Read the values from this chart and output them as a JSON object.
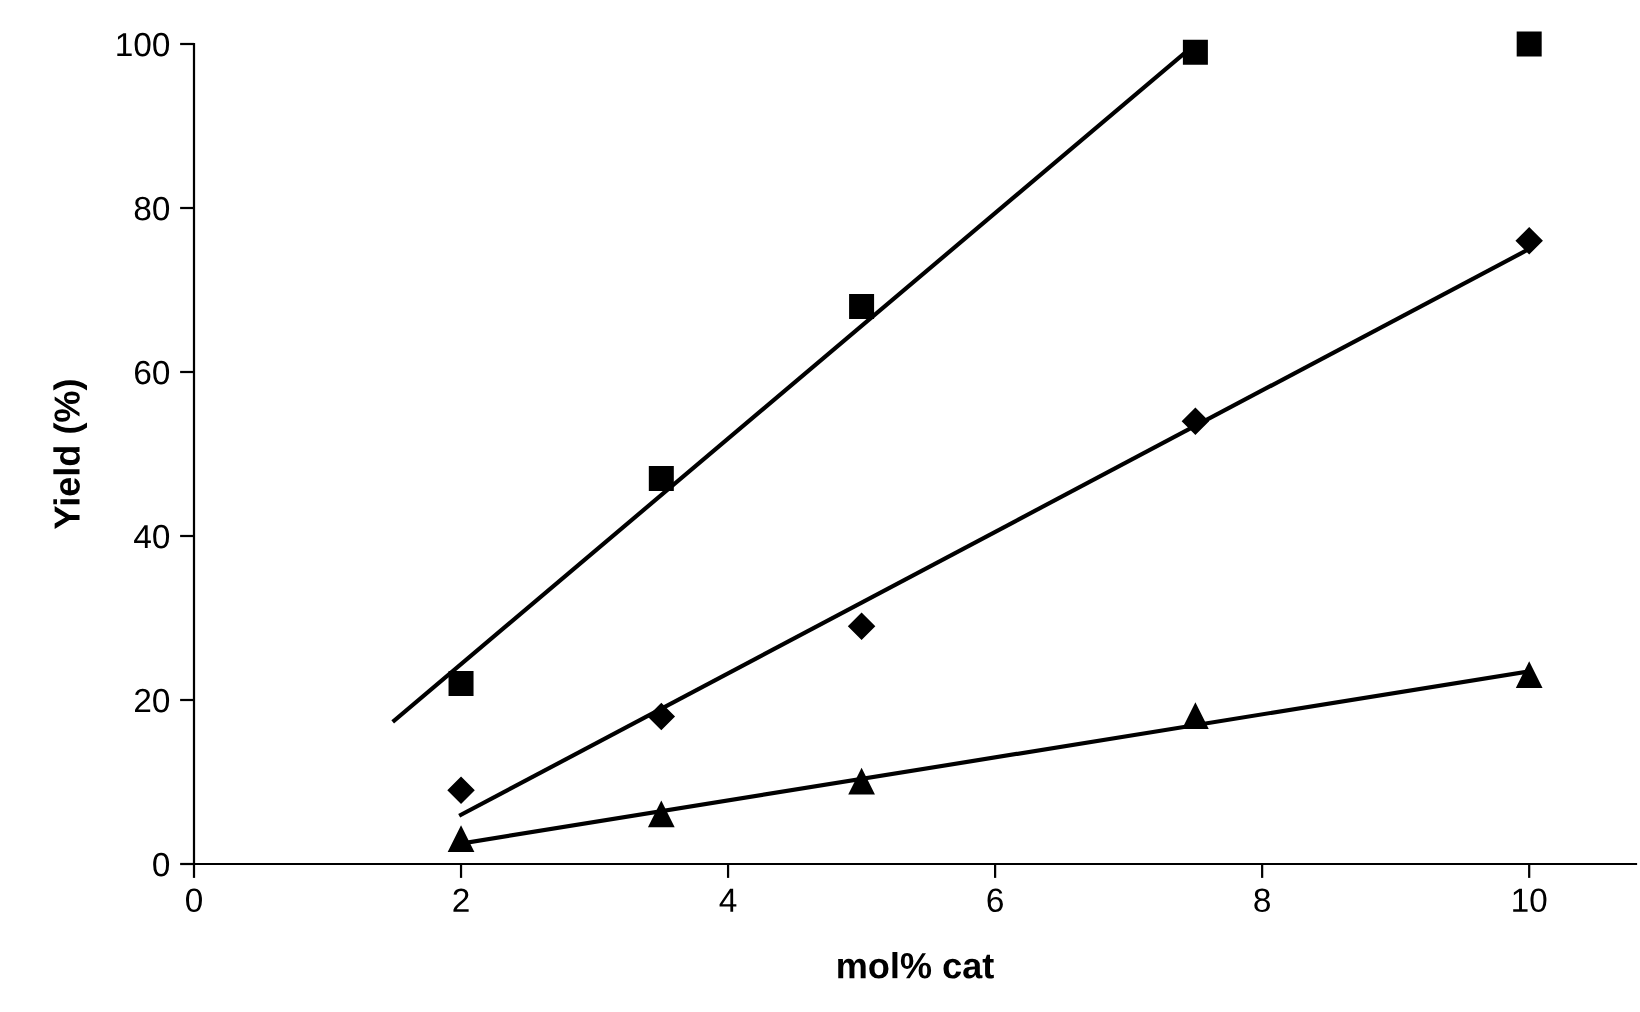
{
  "chart_data": {
    "type": "scatter",
    "xlabel": "mol% cat",
    "ylabel": "Yield (%)",
    "xlim": [
      0,
      10.8
    ],
    "ylim": [
      0,
      100
    ],
    "xticks": [
      0,
      2,
      4,
      6,
      8,
      10
    ],
    "yticks": [
      0,
      20,
      40,
      60,
      80,
      100
    ],
    "grid": false,
    "legend": false,
    "series": [
      {
        "marker": "square",
        "color": "#000000",
        "x": [
          2,
          3.5,
          5,
          7.5,
          10
        ],
        "values": [
          22,
          47,
          68,
          99,
          100
        ]
      },
      {
        "marker": "diamond",
        "color": "#000000",
        "x": [
          2,
          3.5,
          5,
          7.5,
          10
        ],
        "values": [
          9,
          18,
          29,
          54,
          76
        ]
      },
      {
        "marker": "triangle",
        "color": "#000000",
        "x": [
          2,
          3.5,
          5,
          7.5,
          10
        ],
        "values": [
          3,
          6,
          10,
          18,
          23
        ]
      },
      {
        "type": "line",
        "marker": "none",
        "line_style": "solid",
        "color": "#000000",
        "x": [
          1.5,
          7.5
        ],
        "values": [
          17.5,
          100
        ]
      },
      {
        "type": "line",
        "marker": "none",
        "line_style": "solid",
        "color": "#000000",
        "x": [
          2,
          10
        ],
        "values": [
          6,
          75
        ]
      },
      {
        "type": "line",
        "marker": "none",
        "line_style": "solid",
        "color": "#000000",
        "x": [
          2,
          10
        ],
        "values": [
          2.5,
          23.5
        ]
      }
    ]
  }
}
